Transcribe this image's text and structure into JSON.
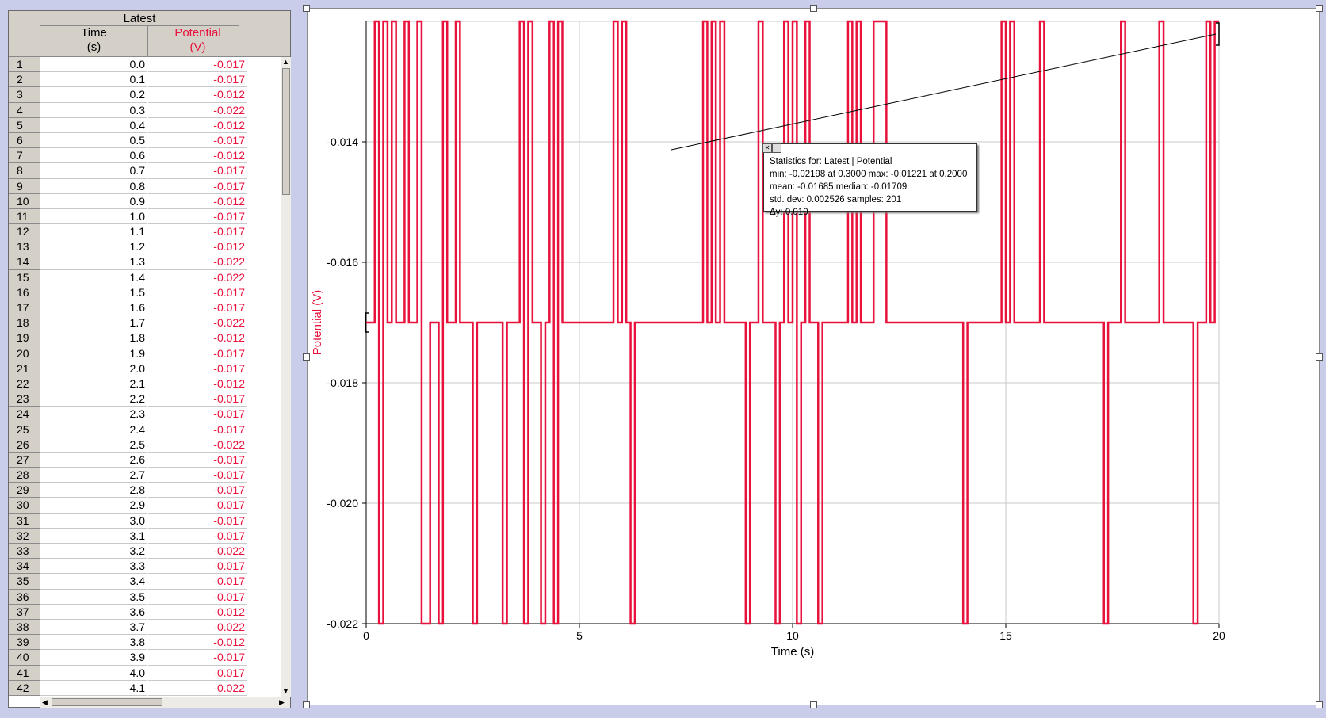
{
  "table": {
    "dataset": "Latest",
    "columns": [
      {
        "name": "Time",
        "unit": "(s)"
      },
      {
        "name": "Potential",
        "unit": "(V)"
      }
    ],
    "rows": [
      [
        "1",
        "0.0",
        "-0.017"
      ],
      [
        "2",
        "0.1",
        "-0.017"
      ],
      [
        "3",
        "0.2",
        "-0.012"
      ],
      [
        "4",
        "0.3",
        "-0.022"
      ],
      [
        "5",
        "0.4",
        "-0.012"
      ],
      [
        "6",
        "0.5",
        "-0.017"
      ],
      [
        "7",
        "0.6",
        "-0.012"
      ],
      [
        "8",
        "0.7",
        "-0.017"
      ],
      [
        "9",
        "0.8",
        "-0.017"
      ],
      [
        "10",
        "0.9",
        "-0.012"
      ],
      [
        "11",
        "1.0",
        "-0.017"
      ],
      [
        "12",
        "1.1",
        "-0.017"
      ],
      [
        "13",
        "1.2",
        "-0.012"
      ],
      [
        "14",
        "1.3",
        "-0.022"
      ],
      [
        "15",
        "1.4",
        "-0.022"
      ],
      [
        "16",
        "1.5",
        "-0.017"
      ],
      [
        "17",
        "1.6",
        "-0.017"
      ],
      [
        "18",
        "1.7",
        "-0.022"
      ],
      [
        "19",
        "1.8",
        "-0.012"
      ],
      [
        "20",
        "1.9",
        "-0.017"
      ],
      [
        "21",
        "2.0",
        "-0.017"
      ],
      [
        "22",
        "2.1",
        "-0.012"
      ],
      [
        "23",
        "2.2",
        "-0.017"
      ],
      [
        "24",
        "2.3",
        "-0.017"
      ],
      [
        "25",
        "2.4",
        "-0.017"
      ],
      [
        "26",
        "2.5",
        "-0.022"
      ],
      [
        "27",
        "2.6",
        "-0.017"
      ],
      [
        "28",
        "2.7",
        "-0.017"
      ],
      [
        "29",
        "2.8",
        "-0.017"
      ],
      [
        "30",
        "2.9",
        "-0.017"
      ],
      [
        "31",
        "3.0",
        "-0.017"
      ],
      [
        "32",
        "3.1",
        "-0.017"
      ],
      [
        "33",
        "3.2",
        "-0.022"
      ],
      [
        "34",
        "3.3",
        "-0.017"
      ],
      [
        "35",
        "3.4",
        "-0.017"
      ],
      [
        "36",
        "3.5",
        "-0.017"
      ],
      [
        "37",
        "3.6",
        "-0.012"
      ],
      [
        "38",
        "3.7",
        "-0.022"
      ],
      [
        "39",
        "3.8",
        "-0.012"
      ],
      [
        "40",
        "3.9",
        "-0.017"
      ],
      [
        "41",
        "4.0",
        "-0.017"
      ],
      [
        "42",
        "4.1",
        "-0.022"
      ]
    ]
  },
  "stats": {
    "title": "Statistics for: Latest | Potential",
    "line1": "min: -0.02198 at 0.3000 max: -0.01221 at 0.2000",
    "line2": "mean: -0.01685 median: -0.01709",
    "line3": "std. dev: 0.002526 samples: 201",
    "line4": "Δy: 0.010"
  },
  "colors": {
    "series": "#e8123c",
    "background": "#c9cde9",
    "grid": "#c8c8c8"
  },
  "chart_data": {
    "type": "line",
    "xlabel": "Time (s)",
    "ylabel": "Potential (V)",
    "xlim": [
      0,
      20
    ],
    "ylim": [
      -0.022,
      -0.012
    ],
    "x_ticks": [
      "0",
      "5",
      "10",
      "15",
      "20"
    ],
    "y_ticks": [
      "-0.014",
      "-0.016",
      "-0.018",
      "-0.020",
      "-0.022"
    ],
    "grid": true,
    "series": [
      {
        "name": "Potential",
        "step": 0.1,
        "x_start": 0,
        "values": [
          -0.017,
          -0.017,
          -0.012,
          -0.022,
          -0.012,
          -0.017,
          -0.012,
          -0.017,
          -0.017,
          -0.012,
          -0.017,
          -0.017,
          -0.012,
          -0.022,
          -0.022,
          -0.017,
          -0.017,
          -0.022,
          -0.012,
          -0.017,
          -0.017,
          -0.012,
          -0.017,
          -0.017,
          -0.017,
          -0.022,
          -0.017,
          -0.017,
          -0.017,
          -0.017,
          -0.017,
          -0.017,
          -0.022,
          -0.017,
          -0.017,
          -0.017,
          -0.012,
          -0.022,
          -0.012,
          -0.017,
          -0.017,
          -0.022,
          -0.017,
          -0.012,
          -0.022,
          -0.012,
          -0.017,
          -0.017,
          -0.017,
          -0.017,
          -0.017,
          -0.017,
          -0.017,
          -0.017,
          -0.017,
          -0.017,
          -0.017,
          -0.017,
          -0.012,
          -0.017,
          -0.012,
          -0.017,
          -0.022,
          -0.017,
          -0.017,
          -0.017,
          -0.017,
          -0.017,
          -0.017,
          -0.017,
          -0.017,
          -0.017,
          -0.017,
          -0.017,
          -0.017,
          -0.017,
          -0.017,
          -0.017,
          -0.017,
          -0.012,
          -0.017,
          -0.012,
          -0.017,
          -0.012,
          -0.017,
          -0.017,
          -0.017,
          -0.017,
          -0.017,
          -0.022,
          -0.017,
          -0.017,
          -0.012,
          -0.017,
          -0.017,
          -0.017,
          -0.022,
          -0.017,
          -0.012,
          -0.017,
          -0.012,
          -0.022,
          -0.017,
          -0.012,
          -0.017,
          -0.017,
          -0.022,
          -0.017,
          -0.017,
          -0.017,
          -0.017,
          -0.017,
          -0.017,
          -0.012,
          -0.017,
          -0.012,
          -0.017,
          -0.017,
          -0.017,
          -0.012,
          -0.012,
          -0.012,
          -0.017,
          -0.017,
          -0.017,
          -0.017,
          -0.017,
          -0.017,
          -0.017,
          -0.017,
          -0.017,
          -0.017,
          -0.017,
          -0.017,
          -0.017,
          -0.017,
          -0.017,
          -0.017,
          -0.017,
          -0.017,
          -0.022,
          -0.017,
          -0.017,
          -0.017,
          -0.017,
          -0.017,
          -0.017,
          -0.017,
          -0.017,
          -0.012,
          -0.017,
          -0.012,
          -0.017,
          -0.017,
          -0.017,
          -0.017,
          -0.017,
          -0.017,
          -0.012,
          -0.017,
          -0.017,
          -0.017,
          -0.017,
          -0.017,
          -0.017,
          -0.017,
          -0.017,
          -0.017,
          -0.017,
          -0.017,
          -0.017,
          -0.017,
          -0.017,
          -0.022,
          -0.017,
          -0.017,
          -0.017,
          -0.012,
          -0.017,
          -0.017,
          -0.017,
          -0.017,
          -0.017,
          -0.017,
          -0.017,
          -0.017,
          -0.012,
          -0.017,
          -0.017,
          -0.017,
          -0.017,
          -0.017,
          -0.017,
          -0.017,
          -0.022,
          -0.017,
          -0.017,
          -0.012,
          -0.017,
          -0.012,
          -0.012
        ]
      }
    ]
  }
}
